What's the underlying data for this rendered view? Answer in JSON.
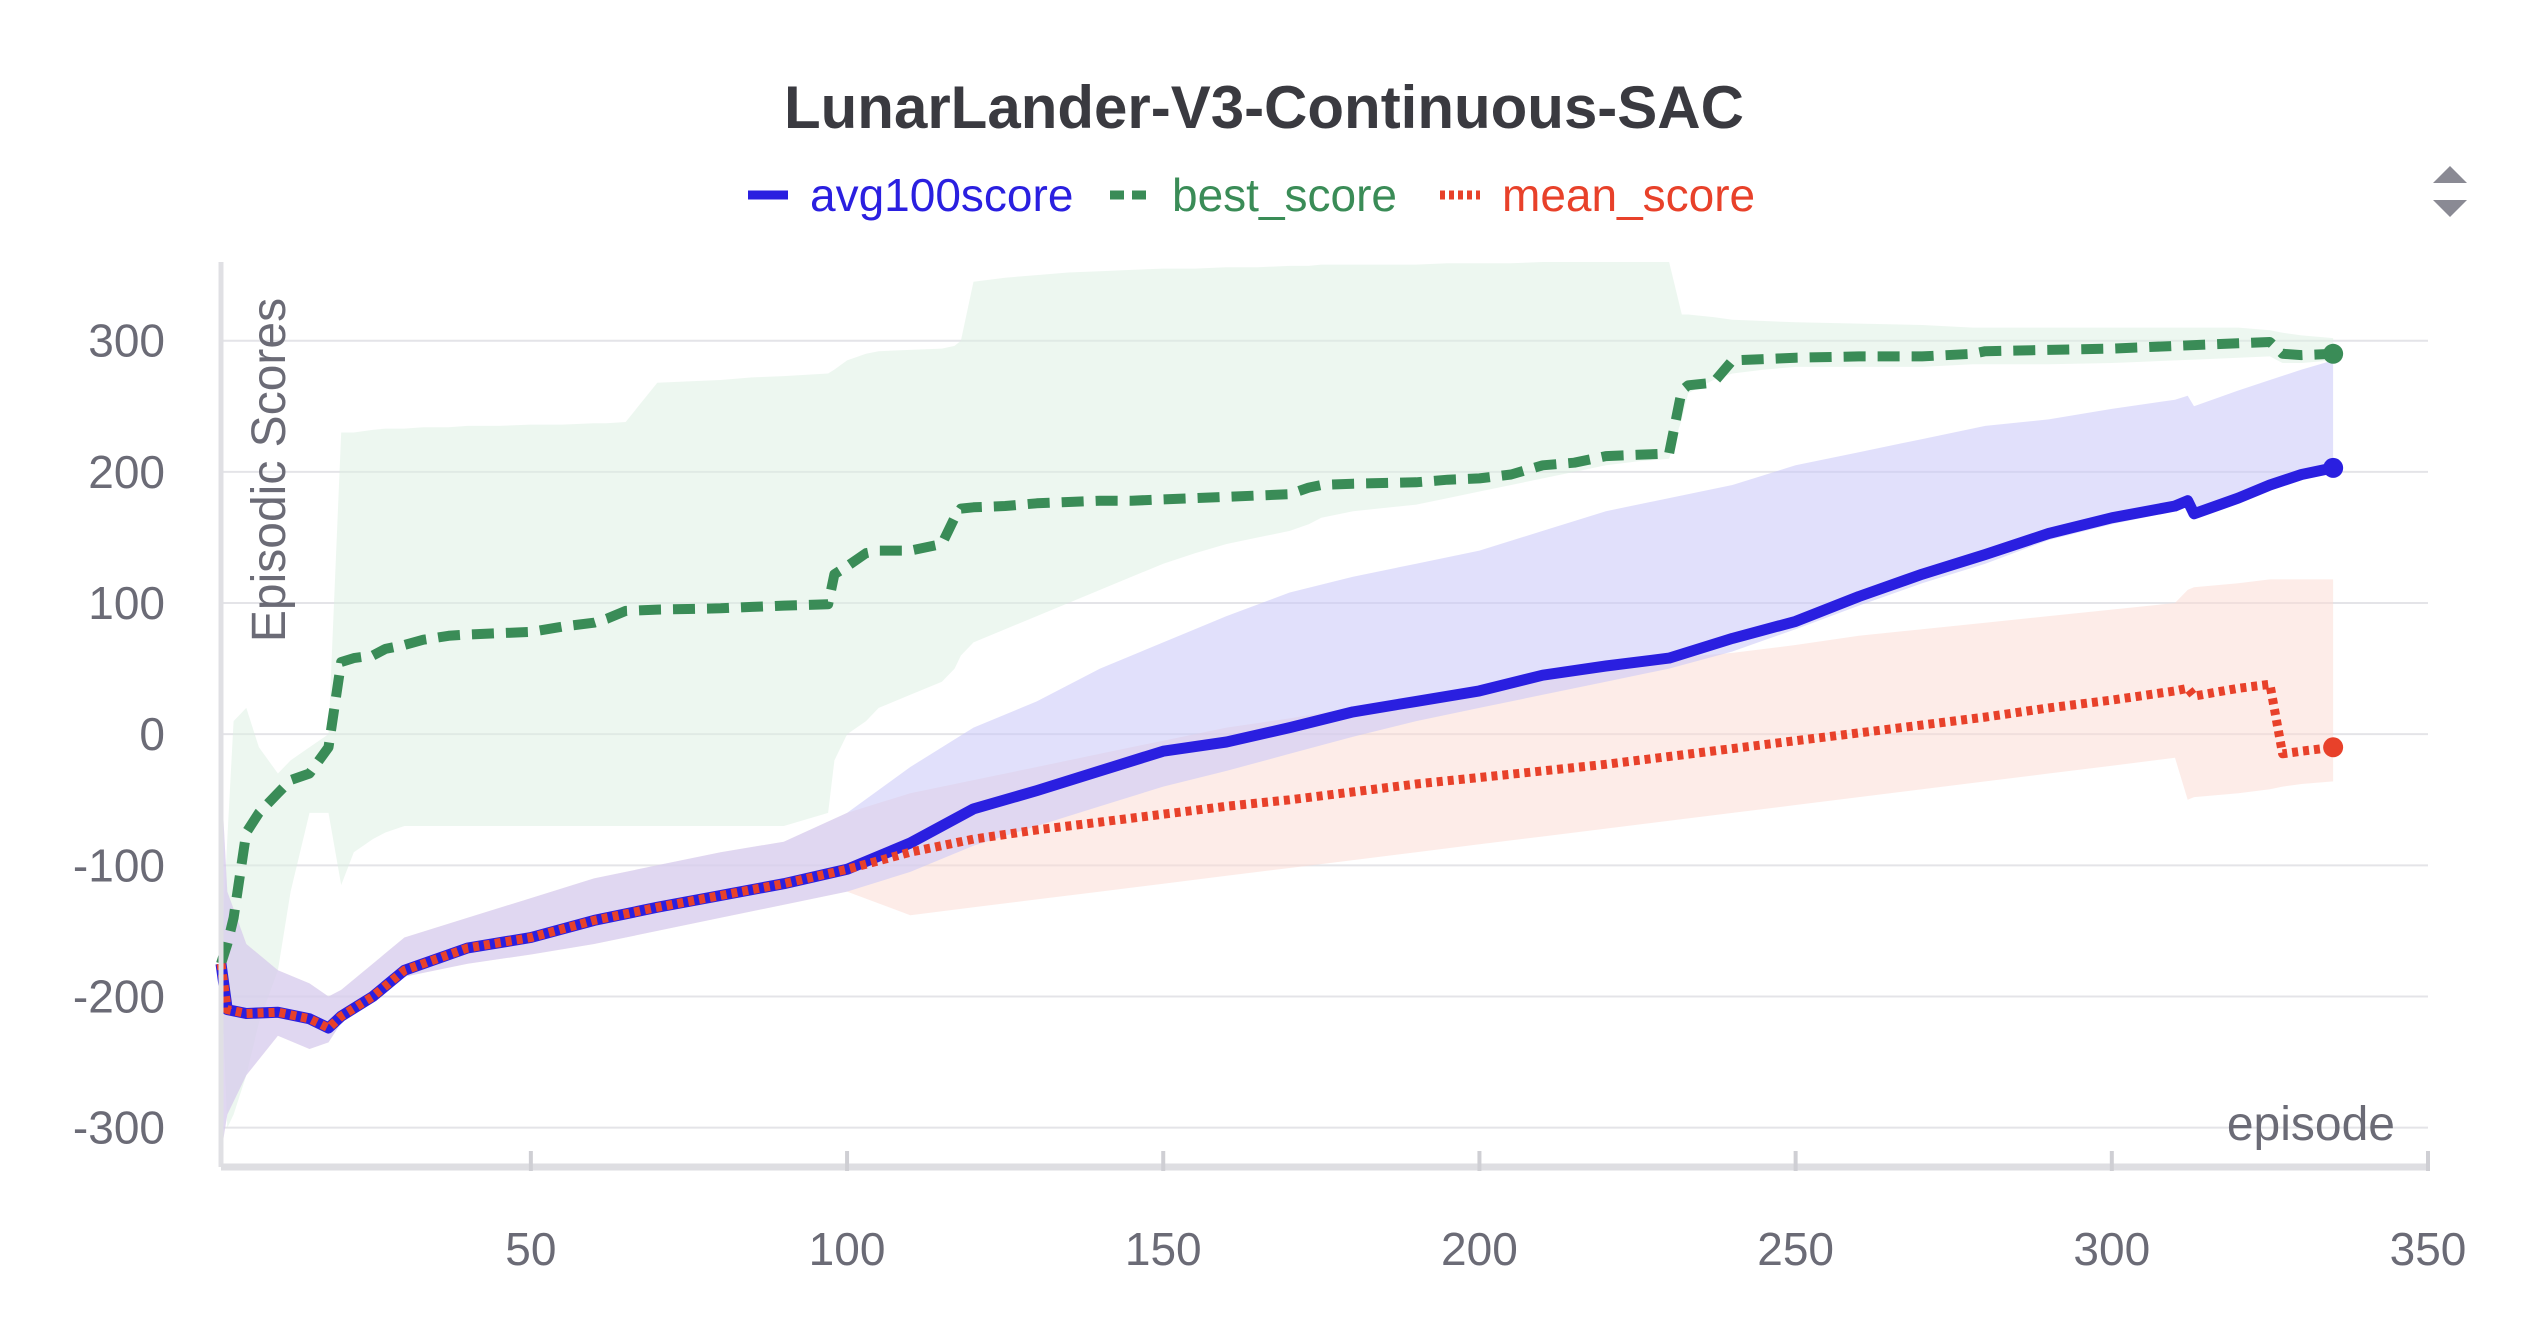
{
  "chart_data": {
    "type": "line",
    "title": "LunarLander-V3-Continuous-SAC",
    "xlabel": "episode",
    "ylabel": "Episodic Scores",
    "xlim": [
      1,
      350
    ],
    "ylim": [
      -330,
      360
    ],
    "xticks": [
      50,
      100,
      150,
      200,
      250,
      300,
      350
    ],
    "yticks": [
      -300,
      -200,
      -100,
      0,
      100,
      200,
      300
    ],
    "grid": true,
    "legend_position": "top",
    "series": [
      {
        "name": "avg100score",
        "color": "#2a1fe0",
        "style": "solid",
        "band_color": "#c9c6f7",
        "x": [
          1,
          2,
          5,
          10,
          15,
          18,
          20,
          25,
          30,
          40,
          50,
          60,
          70,
          80,
          90,
          100,
          110,
          120,
          130,
          140,
          150,
          160,
          170,
          180,
          190,
          200,
          210,
          220,
          230,
          240,
          250,
          260,
          270,
          280,
          290,
          300,
          310,
          312,
          313,
          320,
          325,
          330,
          335
        ],
        "y": [
          -175,
          -210,
          -213,
          -212,
          -217,
          -224,
          -215,
          -200,
          -180,
          -163,
          -155,
          -142,
          -132,
          -123,
          -114,
          -103,
          -83,
          -57,
          -43,
          -28,
          -13,
          -6,
          5,
          17,
          25,
          33,
          45,
          52,
          58,
          73,
          86,
          105,
          122,
          137,
          153,
          165,
          174,
          178,
          168,
          180,
          190,
          198,
          203
        ],
        "band_lower": [
          -320,
          -290,
          -260,
          -230,
          -240,
          -235,
          -220,
          -200,
          -185,
          -175,
          -168,
          -160,
          -150,
          -140,
          -130,
          -120,
          -105,
          -85,
          -70,
          -55,
          -40,
          -28,
          -15,
          -2,
          10,
          20,
          30,
          40,
          50,
          63,
          80,
          98,
          115,
          130,
          148,
          160,
          170,
          174,
          164,
          178,
          188,
          196,
          201
        ],
        "band_upper": [
          -30,
          -120,
          -160,
          -180,
          -190,
          -200,
          -195,
          -175,
          -155,
          -140,
          -125,
          -110,
          -100,
          -90,
          -82,
          -60,
          -25,
          5,
          25,
          50,
          70,
          90,
          108,
          120,
          130,
          140,
          155,
          170,
          180,
          190,
          205,
          215,
          225,
          235,
          240,
          248,
          255,
          258,
          250,
          262,
          270,
          278,
          285
        ]
      },
      {
        "name": "best_score",
        "color": "#3a8c57",
        "style": "dashed",
        "band_color": "#dcefe2",
        "x": [
          1,
          2,
          3,
          5,
          7,
          10,
          12,
          15,
          18,
          20,
          22,
          25,
          27,
          30,
          33,
          37,
          40,
          45,
          50,
          55,
          60,
          62,
          65,
          70,
          80,
          85,
          90,
          97,
          98,
          100,
          103,
          105,
          110,
          115,
          117,
          118,
          120,
          125,
          130,
          135,
          140,
          145,
          150,
          155,
          160,
          165,
          170,
          173,
          175,
          180,
          190,
          195,
          200,
          205,
          210,
          215,
          220,
          225,
          230,
          232,
          233,
          237,
          240,
          245,
          250,
          260,
          270,
          278,
          280,
          290,
          300,
          305,
          310,
          315,
          320,
          325,
          327,
          330,
          335
        ],
        "y": [
          -175,
          -160,
          -140,
          -75,
          -60,
          -45,
          -35,
          -30,
          -10,
          55,
          58,
          60,
          65,
          68,
          72,
          75,
          76,
          77,
          78,
          82,
          85,
          88,
          94,
          95,
          96,
          97,
          98,
          99,
          122,
          128,
          138,
          140,
          140,
          145,
          165,
          172,
          173,
          174,
          176,
          177,
          178,
          178,
          179,
          180,
          181,
          182,
          183,
          188,
          190,
          191,
          192,
          194,
          195,
          198,
          205,
          207,
          212,
          213,
          214,
          262,
          266,
          268,
          285,
          286,
          287,
          288,
          288,
          290,
          292,
          293,
          294,
          295,
          296,
          297,
          298,
          299,
          290,
          289,
          290
        ],
        "band_lower": [
          -175,
          -300,
          -290,
          -260,
          -220,
          -180,
          -120,
          -60,
          -60,
          -115,
          -90,
          -80,
          -75,
          -70,
          -70,
          -70,
          -70,
          -70,
          -70,
          -70,
          -70,
          -70,
          -70,
          -70,
          -70,
          -70,
          -70,
          -60,
          -20,
          0,
          10,
          20,
          30,
          40,
          50,
          60,
          70,
          80,
          90,
          100,
          110,
          120,
          130,
          138,
          145,
          150,
          155,
          160,
          165,
          170,
          175,
          180,
          185,
          190,
          195,
          200,
          205,
          208,
          210,
          240,
          260,
          270,
          275,
          278,
          280,
          280,
          280,
          282,
          282,
          282,
          283,
          284,
          285,
          286,
          287,
          288,
          283,
          283,
          285
        ],
        "band_upper": [
          -175,
          -80,
          10,
          20,
          -10,
          -30,
          -20,
          -10,
          0,
          230,
          230,
          232,
          233,
          233,
          234,
          234,
          235,
          235,
          236,
          236,
          237,
          237,
          238,
          268,
          270,
          272,
          273,
          275,
          278,
          285,
          290,
          292,
          293,
          294,
          296,
          300,
          345,
          348,
          350,
          352,
          353,
          354,
          355,
          355,
          356,
          356,
          357,
          357,
          358,
          358,
          358,
          359,
          359,
          359,
          360,
          360,
          360,
          360,
          360,
          320,
          320,
          318,
          316,
          315,
          314,
          313,
          312,
          310,
          310,
          310,
          310,
          310,
          310,
          310,
          310,
          308,
          306,
          304,
          302
        ]
      },
      {
        "name": "mean_score",
        "color": "#e8412a",
        "style": "dotted",
        "band_color": "#fbd9d2",
        "x": [
          1,
          2,
          5,
          10,
          15,
          18,
          20,
          25,
          30,
          40,
          50,
          60,
          70,
          80,
          90,
          100,
          110,
          120,
          130,
          140,
          150,
          160,
          170,
          180,
          190,
          200,
          210,
          220,
          230,
          240,
          250,
          260,
          270,
          280,
          290,
          300,
          310,
          312,
          313,
          320,
          325,
          327,
          330,
          335
        ],
        "y": [
          -175,
          -210,
          -213,
          -212,
          -217,
          -224,
          -215,
          -200,
          -180,
          -163,
          -155,
          -142,
          -132,
          -123,
          -114,
          -103,
          -90,
          -80,
          -73,
          -67,
          -61,
          -55,
          -50,
          -44,
          -38,
          -33,
          -28,
          -23,
          -17,
          -11,
          -5,
          1,
          7,
          13,
          20,
          26,
          33,
          35,
          29,
          35,
          38,
          -15,
          -13,
          -10
        ],
        "band_lower": [
          -320,
          -290,
          -260,
          -230,
          -240,
          -235,
          -220,
          -200,
          -185,
          -175,
          -168,
          -160,
          -150,
          -140,
          -130,
          -120,
          -138,
          -132,
          -126,
          -120,
          -114,
          -108,
          -102,
          -96,
          -90,
          -84,
          -78,
          -72,
          -66,
          -60,
          -54,
          -48,
          -42,
          -36,
          -30,
          -24,
          -18,
          -50,
          -48,
          -45,
          -42,
          -40,
          -38,
          -36
        ],
        "band_upper": [
          -30,
          -120,
          -160,
          -180,
          -190,
          -200,
          -195,
          -175,
          -155,
          -140,
          -125,
          -110,
          -100,
          -90,
          -82,
          -60,
          -45,
          -35,
          -25,
          -15,
          -5,
          5,
          12,
          20,
          28,
          35,
          42,
          50,
          58,
          62,
          68,
          75,
          80,
          85,
          90,
          95,
          100,
          110,
          112,
          115,
          118,
          118,
          118,
          118
        ]
      }
    ]
  },
  "controls": {
    "legend_scroll_icon": "up-down-triangles-icon"
  }
}
